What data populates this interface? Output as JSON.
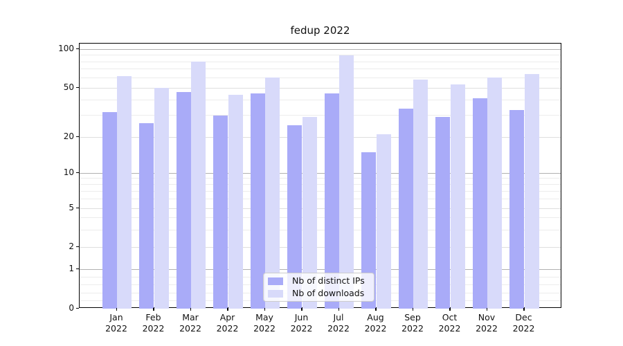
{
  "chart_data": {
    "type": "bar",
    "title": "fedup 2022",
    "categories": [
      "Jan",
      "Feb",
      "Mar",
      "Apr",
      "May",
      "Jun",
      "Jul",
      "Aug",
      "Sep",
      "Oct",
      "Nov",
      "Dec"
    ],
    "category_year": "2022",
    "series": [
      {
        "key": "distinct-ips",
        "name": "Nb of distinct IPs",
        "color": "#a9abf8",
        "values": [
          32,
          26,
          46,
          30,
          45,
          25,
          45,
          15,
          34,
          29,
          41,
          33
        ]
      },
      {
        "key": "downloads",
        "name": "Nb of downloads",
        "color": "#d8dafa",
        "values": [
          62,
          50,
          80,
          44,
          60,
          29,
          90,
          21,
          58,
          53,
          60,
          64
        ]
      }
    ],
    "y_axis": {
      "scale": "symlog",
      "ticks": [
        {
          "label": "100",
          "value": 100
        },
        {
          "label": "50",
          "value": 50
        },
        {
          "label": "20",
          "value": 20
        },
        {
          "label": "10",
          "value": 10
        },
        {
          "label": "5",
          "value": 5
        },
        {
          "label": "2",
          "value": 2
        },
        {
          "label": "1",
          "value": 1
        },
        {
          "label": "0",
          "value": 0
        }
      ],
      "minor_ticks": [
        90,
        80,
        70,
        60,
        40,
        30,
        9,
        8,
        7,
        6,
        4,
        3,
        0.8,
        0.6,
        0.4,
        0.2
      ],
      "ylim": [
        0,
        110
      ]
    },
    "x_axis": {
      "label_lines": 2
    },
    "legend": {
      "position": "lower center",
      "entries": [
        "Nb of distinct IPs",
        "Nb of downloads"
      ]
    },
    "grid": {
      "major_color": "#b0b0b0",
      "minor_color": "#ececec",
      "labeled_nondecade_color": "#dedede"
    }
  }
}
